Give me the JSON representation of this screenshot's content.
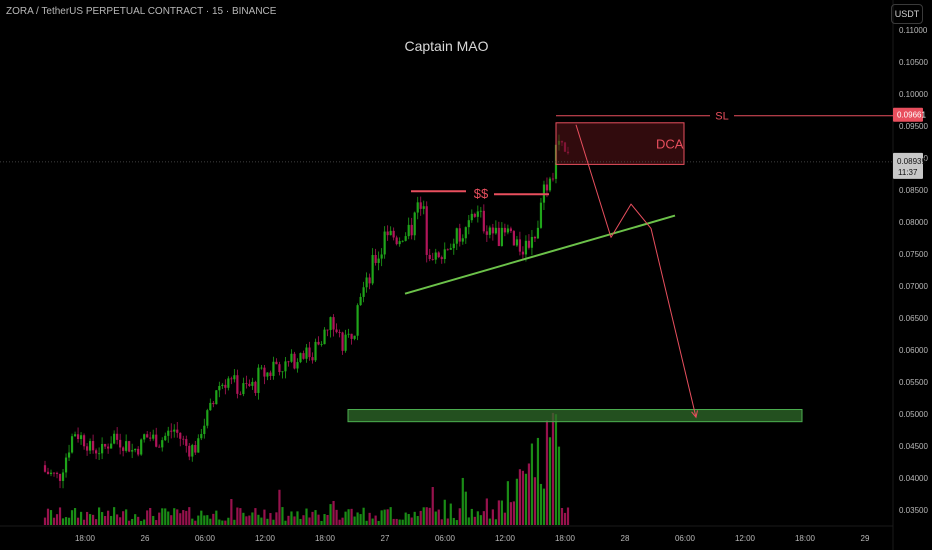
{
  "header": {
    "symbol_line": "ZORA / TetherUS PERPETUAL CONTRACT · 15 · BINANCE",
    "unit_label": "USDT",
    "watermark": "Captain MAO"
  },
  "colors": {
    "background": "#000000",
    "up": "#26a69a",
    "up_candle": "#1fa51a",
    "down_candle": "#b1155a",
    "annotation_red": "#e84f5e",
    "trendline_green": "#6cc24a",
    "zone_green": "#2f6b2a",
    "price_badge_red": "#e84f5e",
    "price_badge_gray": "#c8c8c8"
  },
  "chart_data": {
    "type": "candlestick",
    "y_axis": {
      "ticks": [
        "0.11000",
        "0.10500",
        "0.10000",
        "0.09500",
        "0.09000",
        "0.08500",
        "0.08000",
        "0.07500",
        "0.07000",
        "0.06500",
        "0.06000",
        "0.05500",
        "0.05000",
        "0.04500",
        "0.04000",
        "0.03500"
      ],
      "range": [
        0.0335,
        0.112
      ]
    },
    "x_axis": {
      "ticks": [
        "18:00",
        "26",
        "06:00",
        "12:00",
        "18:00",
        "27",
        "06:00",
        "12:00",
        "18:00",
        "28",
        "06:00",
        "12:00",
        "18:00",
        "29"
      ],
      "range_hours": [
        "25 14:00",
        "29 04:00"
      ]
    },
    "price_path": [
      [
        0.042,
        0.041
      ],
      [
        0.04,
        0.04
      ],
      [
        0.047,
        0.0475
      ],
      [
        0.0455,
        0.0445
      ],
      [
        0.0445,
        0.044
      ],
      [
        0.047,
        0.0462
      ],
      [
        0.045,
        0.044
      ],
      [
        0.0455,
        0.0465
      ],
      [
        0.046,
        0.0455
      ],
      [
        0.0475,
        0.048
      ],
      [
        0.045,
        0.0445
      ],
      [
        0.045,
        0.0475
      ],
      [
        0.052,
        0.054
      ],
      [
        0.0555,
        0.056
      ],
      [
        0.053,
        0.054
      ],
      [
        0.0545,
        0.056
      ],
      [
        0.0565,
        0.058
      ],
      [
        0.0575,
        0.0575
      ],
      [
        0.059,
        0.06
      ],
      [
        0.059,
        0.061
      ],
      [
        0.063,
        0.065
      ],
      [
        0.062,
        0.06
      ],
      [
        0.064,
        0.068
      ],
      [
        0.071,
        0.073
      ],
      [
        0.076,
        0.079
      ],
      [
        0.077,
        0.0775
      ],
      [
        0.079,
        0.083
      ],
      [
        0.081,
        0.076
      ],
      [
        0.0735,
        0.0755
      ],
      [
        0.077,
        0.0775
      ],
      [
        0.079,
        0.082
      ],
      [
        0.0805,
        0.0795
      ],
      [
        0.078,
        0.0775
      ],
      [
        0.0785,
        0.076
      ],
      [
        0.076,
        0.0765
      ],
      [
        0.079,
        0.084
      ],
      [
        0.088,
        0.0925
      ],
      [
        0.09,
        0.0895
      ]
    ],
    "volume_max_label": "",
    "annotations": {
      "sl": {
        "label": "SL",
        "price": 0.09661
      },
      "dca": {
        "label": "DCA",
        "top": 0.0955,
        "bottom": 0.089
      },
      "liquidity": {
        "label": "$$",
        "price": 0.0845
      },
      "trendline": {
        "from": [
          "27 03:00",
          0.0688
        ],
        "to": [
          "28 06:00",
          0.081
        ]
      },
      "target_zone": {
        "top": 0.0507,
        "bottom": 0.0488
      },
      "projection": [
        [
          "27 18:30",
          0.0952
        ],
        [
          "27 22:00",
          0.0776
        ],
        [
          "28 00:00",
          0.0828
        ],
        [
          "28 02:00",
          0.079
        ],
        [
          "28 06:30",
          0.0495
        ]
      ]
    },
    "price_badges": {
      "sl_price": "0.09661",
      "last_price": "0.08939",
      "countdown": "11:37"
    }
  }
}
